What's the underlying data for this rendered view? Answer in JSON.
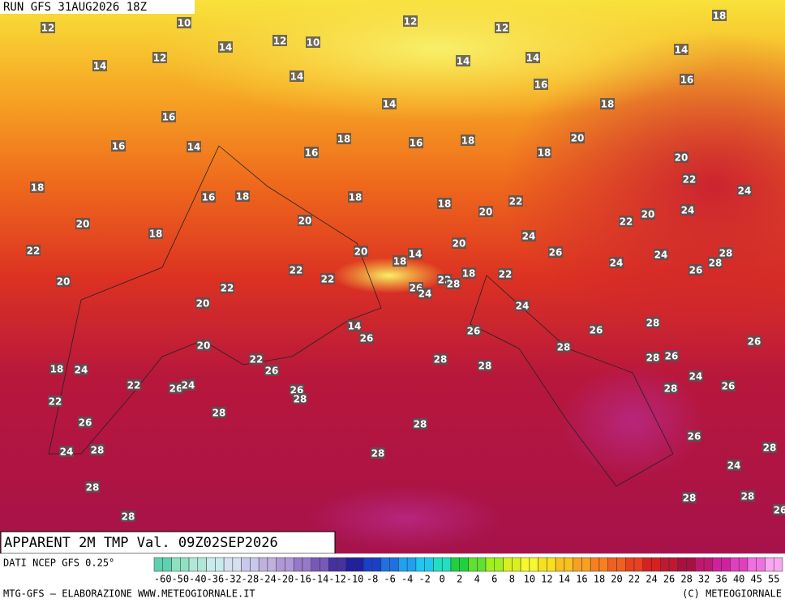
{
  "header": {
    "run": "RUN GFS 31AUG2026 18Z",
    "field": "APPARENT 2M TMP Val. 09Z02SEP2026"
  },
  "map": {
    "labels": [
      12,
      10,
      12,
      10,
      12,
      12,
      18,
      12,
      14,
      14,
      14,
      14,
      14,
      14,
      16,
      16,
      14,
      18,
      16,
      16,
      14,
      16,
      18,
      16,
      18,
      20,
      18,
      20,
      18,
      16,
      18,
      18,
      18,
      22,
      20,
      22,
      24,
      20,
      18,
      20,
      22,
      20,
      24,
      22,
      20,
      18,
      14,
      20,
      24,
      26,
      24,
      24,
      26,
      28,
      28,
      20,
      22,
      22,
      22,
      18,
      22,
      26,
      24,
      22,
      28,
      20,
      24,
      14,
      26,
      26,
      26,
      28,
      20,
      22,
      28,
      28,
      28,
      28,
      26,
      26,
      18,
      24,
      26,
      24,
      22,
      26,
      24,
      26,
      28,
      28,
      26,
      22,
      28,
      26,
      28,
      26,
      24,
      28,
      28,
      28,
      24,
      28,
      28,
      28,
      28,
      26
    ]
  },
  "colorbar": {
    "source": "DATI NCEP GFS 0.25°",
    "ticks": [
      -60,
      -50,
      -40,
      -36,
      -32,
      -28,
      -24,
      -20,
      -16,
      -14,
      -12,
      -10,
      -8,
      -6,
      -4,
      -2,
      0,
      2,
      4,
      6,
      8,
      10,
      12,
      14,
      16,
      18,
      20,
      22,
      24,
      26,
      28,
      32,
      36,
      40,
      45,
      55
    ],
    "colors": [
      "#5fd0b0",
      "#8de0c0",
      "#b0e8d8",
      "#c8ecec",
      "#d8e0f0",
      "#c8c8ec",
      "#c0b0e0",
      "#b098d8",
      "#9878c8",
      "#7858b8",
      "#4830a0",
      "#2020a0",
      "#1840c8",
      "#2070e0",
      "#20a0f0",
      "#20c8f0",
      "#20e0c0",
      "#20d040",
      "#60e030",
      "#a0f020",
      "#d8f020",
      "#f8f830",
      "#f8e020",
      "#f8c020",
      "#f8a020",
      "#f88020",
      "#f06020",
      "#e84020",
      "#d82020",
      "#c01830",
      "#a81040",
      "#c01870",
      "#d020a0",
      "#e040c0",
      "#f070e0",
      "#f8a8f0"
    ]
  },
  "footer": {
    "left": "MTG-GFS — ELABORAZIONE WWW.METEOGIORNALE.IT",
    "right": "(C) METEOGIORNALE"
  }
}
